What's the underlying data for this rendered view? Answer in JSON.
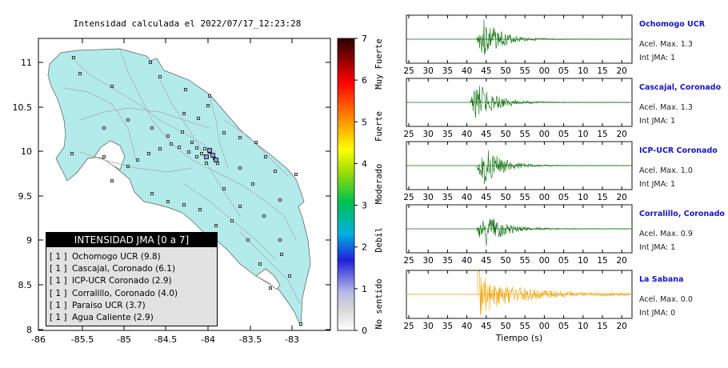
{
  "map": {
    "title": "Intensidad calculada el 2022/07/17_12:23:28",
    "lon_ticks": [
      "-86",
      "-85.5",
      "-85",
      "-84.5",
      "-84",
      "-83.5",
      "-83"
    ],
    "lat_ticks": [
      "11",
      "10.5",
      "10",
      "9.5",
      "9",
      "8.5",
      "8"
    ],
    "land_color": "#b3ebeb",
    "colorbar": {
      "ticks": [
        "7",
        "6",
        "5",
        "4",
        "3",
        "2",
        "1",
        "0"
      ],
      "labels": [
        "Muy Fuerte",
        "Fuerte",
        "Moderado",
        "Debil",
        "No sentido"
      ]
    },
    "legend": {
      "title": "INTENSIDAD JMA [0 a 7]",
      "items": [
        {
          "code": "[ 1 ]",
          "label": "Ochomogo UCR (9.8)"
        },
        {
          "code": "[ 1 ]",
          "label": "Cascajal, Coronado (6.1)"
        },
        {
          "code": "[ 1 ]",
          "label": "ICP-UCR Coronado (2.9)"
        },
        {
          "code": "[ 1 ]",
          "label": "Corralillo, Coronado (4.0)"
        },
        {
          "code": "[ 1 ]",
          "label": "Paraiso UCR (3.7)"
        },
        {
          "code": "[ 1 ]",
          "label": "Agua Caliente (2.9)"
        }
      ]
    }
  },
  "traces": {
    "time_ticks": [
      "25",
      "30",
      "35",
      "40",
      "45",
      "50",
      "55",
      "00",
      "05",
      "10",
      "15",
      "20"
    ],
    "xlabel": "Tiempo (s)",
    "stations": [
      {
        "name": "Ochomogo UCR",
        "accel": "Acel. Max. 1.3",
        "int": "Int JMA: 1",
        "color": "#0a6e0a"
      },
      {
        "name": "Cascajal, Coronado",
        "accel": "Acel. Max. 1.3",
        "int": "Int JMA: 1",
        "color": "#0a6e0a"
      },
      {
        "name": "ICP-UCR Coronado",
        "accel": "Acel. Max. 1.0",
        "int": "Int JMA: 1",
        "color": "#0a6e0a"
      },
      {
        "name": "Corralillo, Coronado",
        "accel": "Acel. Max. 0.9",
        "int": "Int JMA: 1",
        "color": "#0a6e0a"
      },
      {
        "name": "La Sabana",
        "accel": "Acel. Max. 0.0",
        "int": "Int JMA: 0",
        "color": "#f5a000"
      }
    ]
  }
}
